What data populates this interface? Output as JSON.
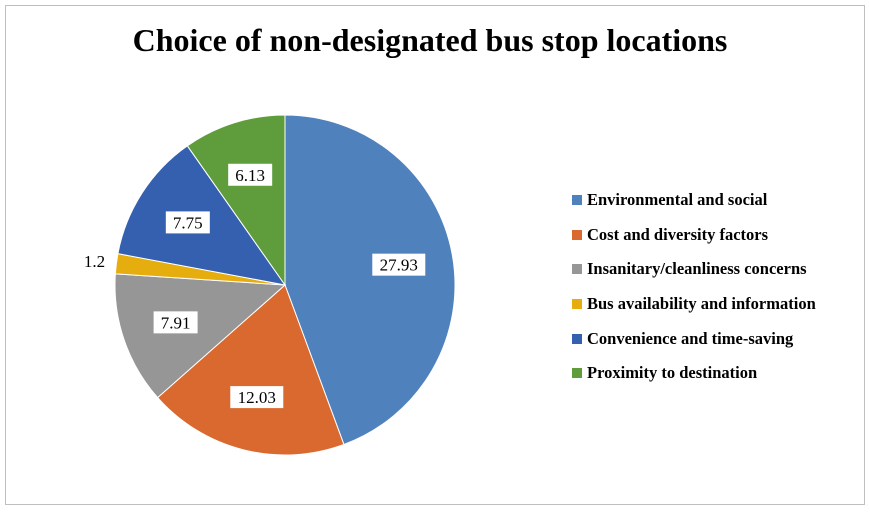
{
  "chart_data": {
    "type": "pie",
    "title": "Choice of non-designated bus stop locations",
    "legend_position": "right",
    "slices": [
      {
        "label": "Environmental and social",
        "value": 27.93,
        "color": "#4f81bd"
      },
      {
        "label": "Cost and diversity factors",
        "value": 12.03,
        "color": "#d9692e"
      },
      {
        "label": "Insanitary/cleanliness concerns",
        "value": 7.91,
        "color": "#969696"
      },
      {
        "label": "Bus availability and information",
        "value": 1.2,
        "color": "#e6ad0e"
      },
      {
        "label": "Convenience and time-saving",
        "value": 7.75,
        "color": "#3560b0"
      },
      {
        "label": "Proximity to destination",
        "value": 6.13,
        "color": "#5f9c3c"
      }
    ]
  }
}
